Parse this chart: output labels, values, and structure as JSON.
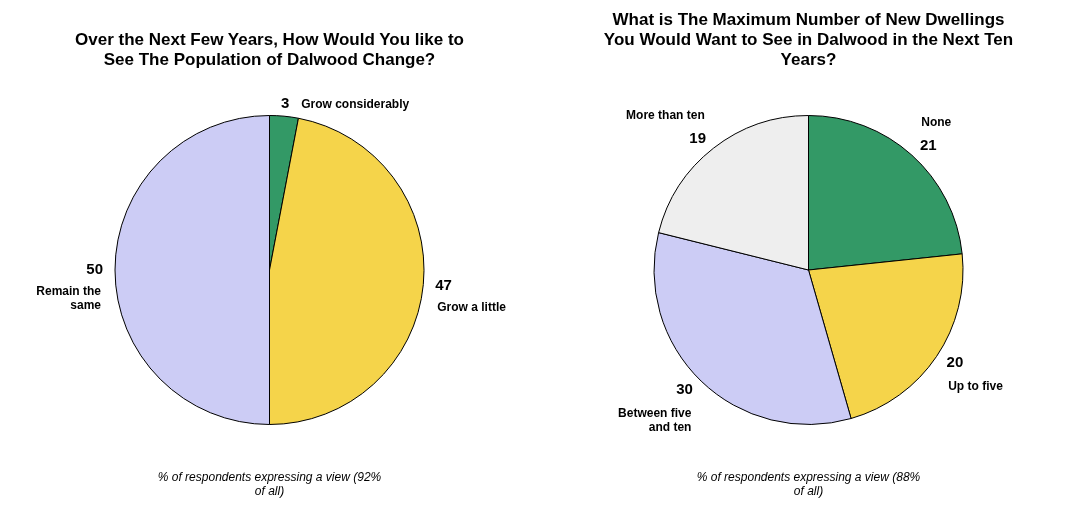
{
  "chart_data": [
    {
      "type": "pie",
      "title": "Over the Next Few Years, How Would You like to See The Population of Dalwood Change?",
      "categories": [
        "Grow considerably",
        "Grow a little",
        "Remain the same"
      ],
      "values": [
        3,
        47,
        50
      ],
      "colors": [
        "#339966",
        "#f5d44a",
        "#ccccf5"
      ],
      "data_labels": true,
      "legend": false,
      "annotations": [
        "% of respondents expressing a view (92% of all)"
      ]
    },
    {
      "type": "pie",
      "title": "What is The Maximum Number of New Dwellings You Would Want to See in Dalwood in the Next Ten Years?",
      "categories": [
        "None",
        "Up to five",
        "Between five and ten",
        "More than ten"
      ],
      "values": [
        21,
        20,
        30,
        19
      ],
      "colors": [
        "#339966",
        "#f5d44a",
        "#ccccf5",
        "#eeeeee"
      ],
      "data_labels": true,
      "legend": false,
      "annotations": [
        "% of respondents expressing a view (88% of all)"
      ]
    }
  ]
}
